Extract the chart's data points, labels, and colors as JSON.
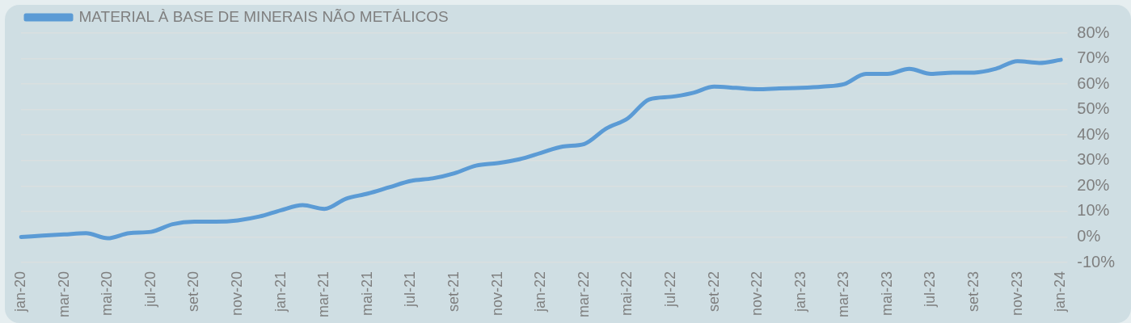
{
  "chart_data": {
    "type": "line",
    "categories": [
      "jan-20",
      null,
      "mar-20",
      null,
      "mai-20",
      null,
      "jul-20",
      null,
      "set-20",
      null,
      "nov-20",
      null,
      "jan-21",
      null,
      "mar-21",
      null,
      "mai-21",
      null,
      "jul-21",
      null,
      "set-21",
      null,
      "nov-21",
      null,
      "jan-22",
      null,
      "mar-22",
      null,
      "mai-22",
      null,
      "jul-22",
      null,
      "set-22",
      null,
      "nov-22",
      null,
      "jan-23",
      null,
      "mar-23",
      null,
      "mai-23",
      null,
      "jul-23",
      null,
      "set-23",
      null,
      "nov-23",
      null,
      "jan-24"
    ],
    "series": [
      {
        "name": "MATERIAL À BASE DE MINERAIS NÃO METÁLICOS",
        "color": "#5b9bd5",
        "values": [
          0,
          0.5,
          1,
          1.5,
          -0.5,
          1.5,
          2,
          5,
          6,
          6,
          6.5,
          8,
          10.5,
          12.5,
          11,
          15,
          17,
          19.5,
          22,
          23,
          25,
          28,
          29,
          30.5,
          33,
          35.5,
          36.5,
          42.5,
          46.5,
          54,
          55,
          56.5,
          59,
          58.5,
          58,
          58.3,
          58.5,
          59,
          60,
          64,
          64,
          66,
          64,
          64.5,
          64.5,
          66,
          69,
          68.3,
          69.5
        ]
      }
    ],
    "ylim": [
      -10,
      80
    ],
    "yticks": [
      {
        "value": -10,
        "label": "-10%"
      },
      {
        "value": 0,
        "label": "0%"
      },
      {
        "value": 10,
        "label": "10%"
      },
      {
        "value": 20,
        "label": "20%"
      },
      {
        "value": 30,
        "label": "30%"
      },
      {
        "value": 40,
        "label": "40%"
      },
      {
        "value": 50,
        "label": "50%"
      },
      {
        "value": 60,
        "label": "60%"
      },
      {
        "value": 70,
        "label": "70%"
      },
      {
        "value": 80,
        "label": "80%"
      }
    ],
    "grid": "y",
    "legend": "top left",
    "marker": "none",
    "line_style": "solid"
  }
}
